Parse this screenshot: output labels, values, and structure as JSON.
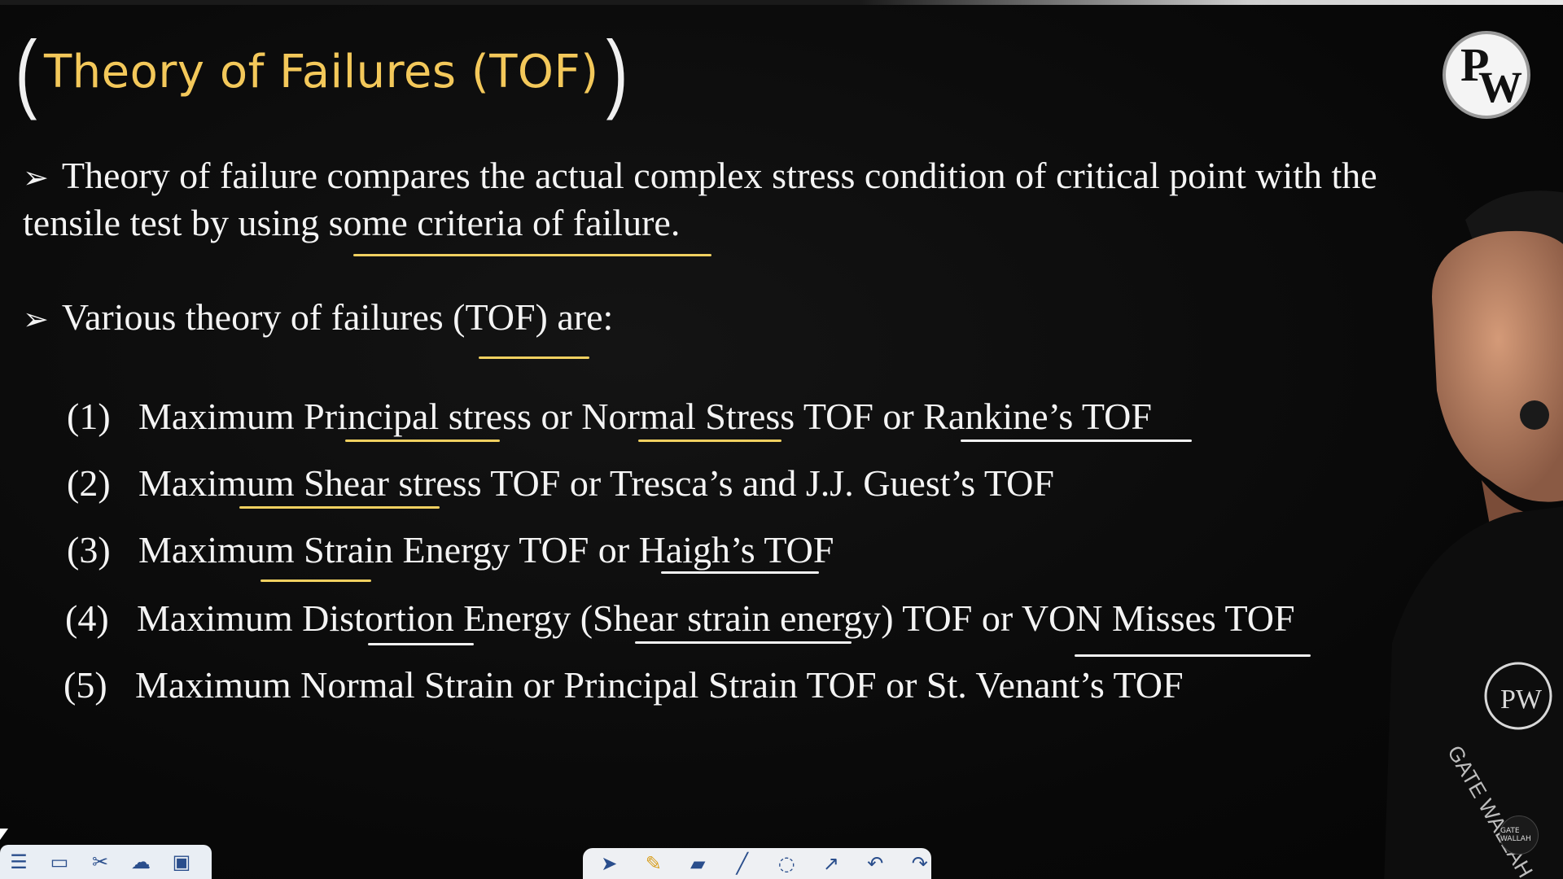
{
  "slide": {
    "title": "Theory of Failures (TOF)",
    "logo": {
      "p": "P",
      "w": "W"
    },
    "bullets": [
      {
        "line1": "Theory of failure compares the actual complex stress condition of critical point with the",
        "line2": "tensile test by using some criteria of failure."
      },
      {
        "line1": "Various theory of failures (TOF) are:"
      }
    ],
    "items": [
      {
        "num": "(1)",
        "text": "Maximum Principal stress or Normal Stress TOF or Rankine’s TOF"
      },
      {
        "num": "(2)",
        "text": "Maximum Shear stress TOF or Tresca’s and J.J. Guest’s TOF"
      },
      {
        "num": "(3)",
        "text": "Maximum Strain Energy TOF or Haigh’s TOF"
      },
      {
        "num": "(4)",
        "text": "Maximum Distortion Energy (Shear strain energy) TOF or VON Misses TOF"
      },
      {
        "num": "(5)",
        "text": "Maximum Normal Strain or Principal Strain TOF or St. Venant’s TOF"
      }
    ]
  },
  "presenter_shirt_text": "GATE WALLAH",
  "corner_badge": "GATE WALLAH",
  "toolbars": {
    "left_icons": [
      "menu-icon",
      "screen-icon",
      "tools-icon",
      "cloud-icon",
      "image-icon"
    ],
    "center_icons": [
      "pointer-icon",
      "pen-icon",
      "highlighter-icon",
      "line-icon",
      "eraser-icon",
      "laser-icon",
      "undo-icon",
      "redo-icon"
    ]
  },
  "colors": {
    "title": "#f3c85a",
    "underline": "#f0d060",
    "text": "#f4f4f4",
    "background": "#0a0a0a"
  }
}
